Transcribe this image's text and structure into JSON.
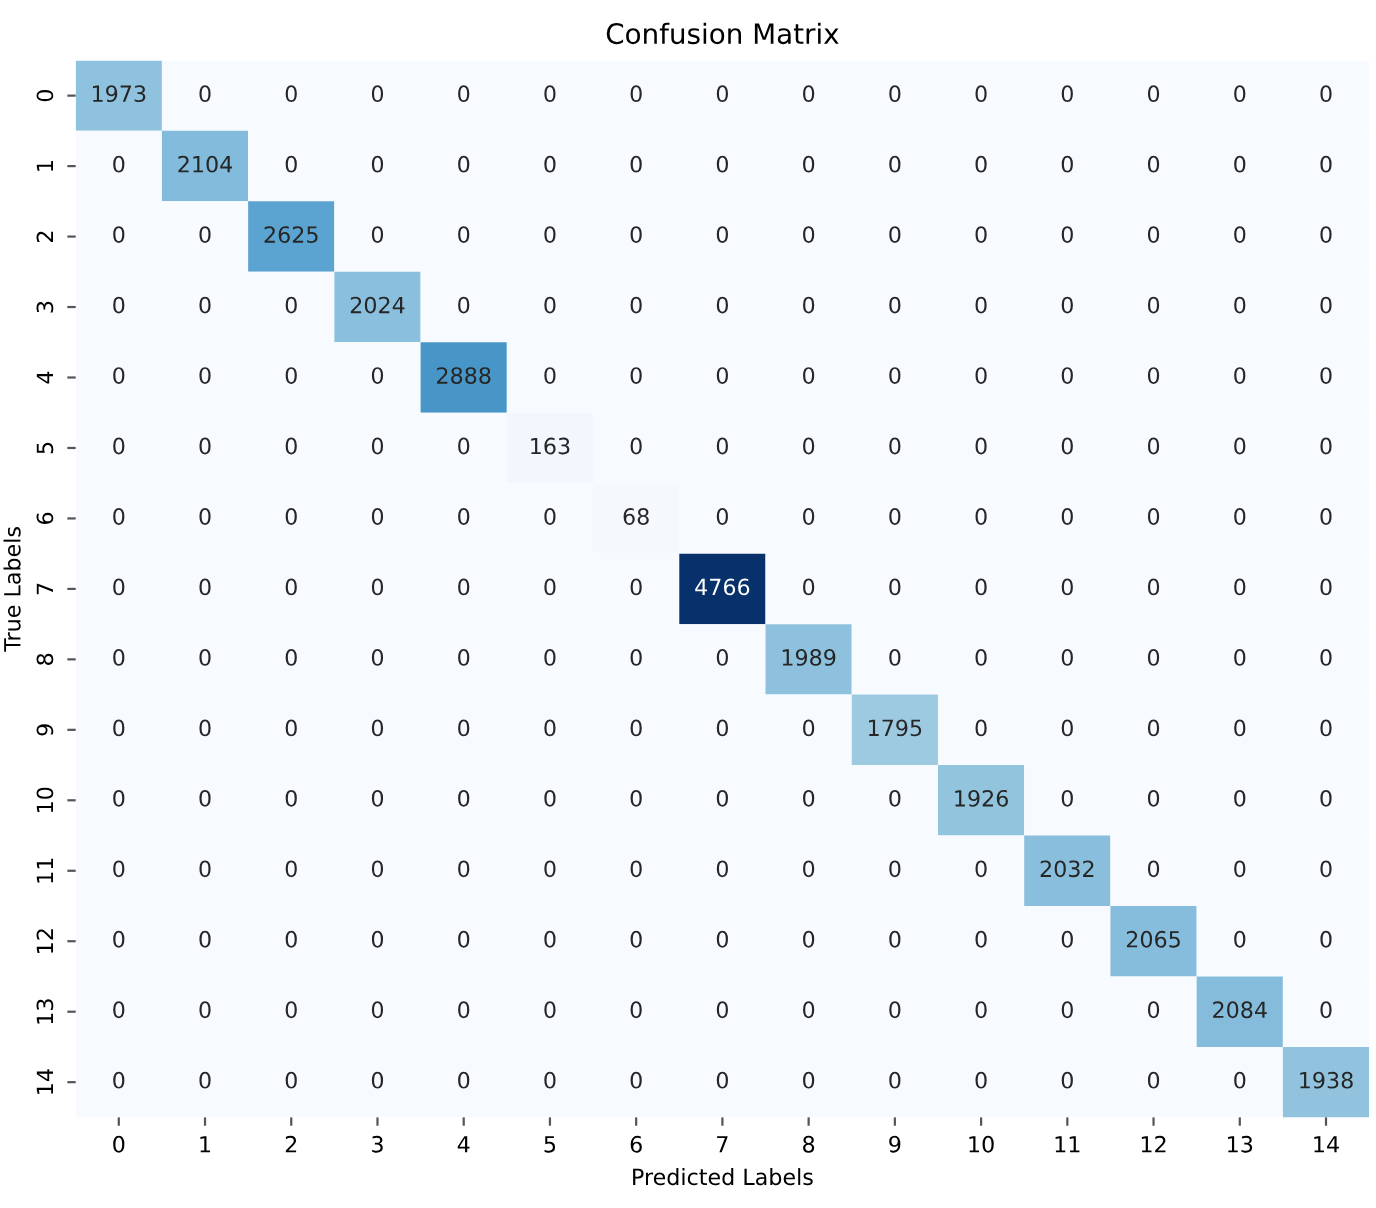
{
  "chart_data": {
    "type": "heatmap",
    "title": "Confusion Matrix",
    "xlabel": "Predicted Labels",
    "ylabel": "True Labels",
    "categories": [
      "0",
      "1",
      "2",
      "3",
      "4",
      "5",
      "6",
      "7",
      "8",
      "9",
      "10",
      "11",
      "12",
      "13",
      "14"
    ],
    "y_categories": [
      "0",
      "1",
      "2",
      "3",
      "4",
      "5",
      "6",
      "7",
      "8",
      "9",
      "10",
      "11",
      "12",
      "13",
      "14"
    ],
    "data_labels": true,
    "cells": [
      [
        1973,
        0,
        0,
        0,
        0,
        0,
        0,
        0,
        0,
        0,
        0,
        0,
        0,
        0,
        0
      ],
      [
        0,
        2104,
        0,
        0,
        0,
        0,
        0,
        0,
        0,
        0,
        0,
        0,
        0,
        0,
        0
      ],
      [
        0,
        0,
        2625,
        0,
        0,
        0,
        0,
        0,
        0,
        0,
        0,
        0,
        0,
        0,
        0
      ],
      [
        0,
        0,
        0,
        2024,
        0,
        0,
        0,
        0,
        0,
        0,
        0,
        0,
        0,
        0,
        0
      ],
      [
        0,
        0,
        0,
        0,
        2888,
        0,
        0,
        0,
        0,
        0,
        0,
        0,
        0,
        0,
        0
      ],
      [
        0,
        0,
        0,
        0,
        0,
        163,
        0,
        0,
        0,
        0,
        0,
        0,
        0,
        0,
        0
      ],
      [
        0,
        0,
        0,
        0,
        0,
        0,
        68,
        0,
        0,
        0,
        0,
        0,
        0,
        0,
        0
      ],
      [
        0,
        0,
        0,
        0,
        0,
        0,
        0,
        4766,
        0,
        0,
        0,
        0,
        0,
        0,
        0
      ],
      [
        0,
        0,
        0,
        0,
        0,
        0,
        0,
        0,
        1989,
        0,
        0,
        0,
        0,
        0,
        0
      ],
      [
        0,
        0,
        0,
        0,
        0,
        0,
        0,
        0,
        0,
        1795,
        0,
        0,
        0,
        0,
        0
      ],
      [
        0,
        0,
        0,
        0,
        0,
        0,
        0,
        0,
        0,
        0,
        1926,
        0,
        0,
        0,
        0
      ],
      [
        0,
        0,
        0,
        0,
        0,
        0,
        0,
        0,
        0,
        0,
        0,
        2032,
        0,
        0,
        0
      ],
      [
        0,
        0,
        0,
        0,
        0,
        0,
        0,
        0,
        0,
        0,
        0,
        0,
        2065,
        0,
        0
      ],
      [
        0,
        0,
        0,
        0,
        0,
        0,
        0,
        0,
        0,
        0,
        0,
        0,
        0,
        2084,
        0
      ],
      [
        0,
        0,
        0,
        0,
        0,
        0,
        0,
        0,
        0,
        0,
        0,
        0,
        0,
        0,
        1938
      ]
    ]
  }
}
